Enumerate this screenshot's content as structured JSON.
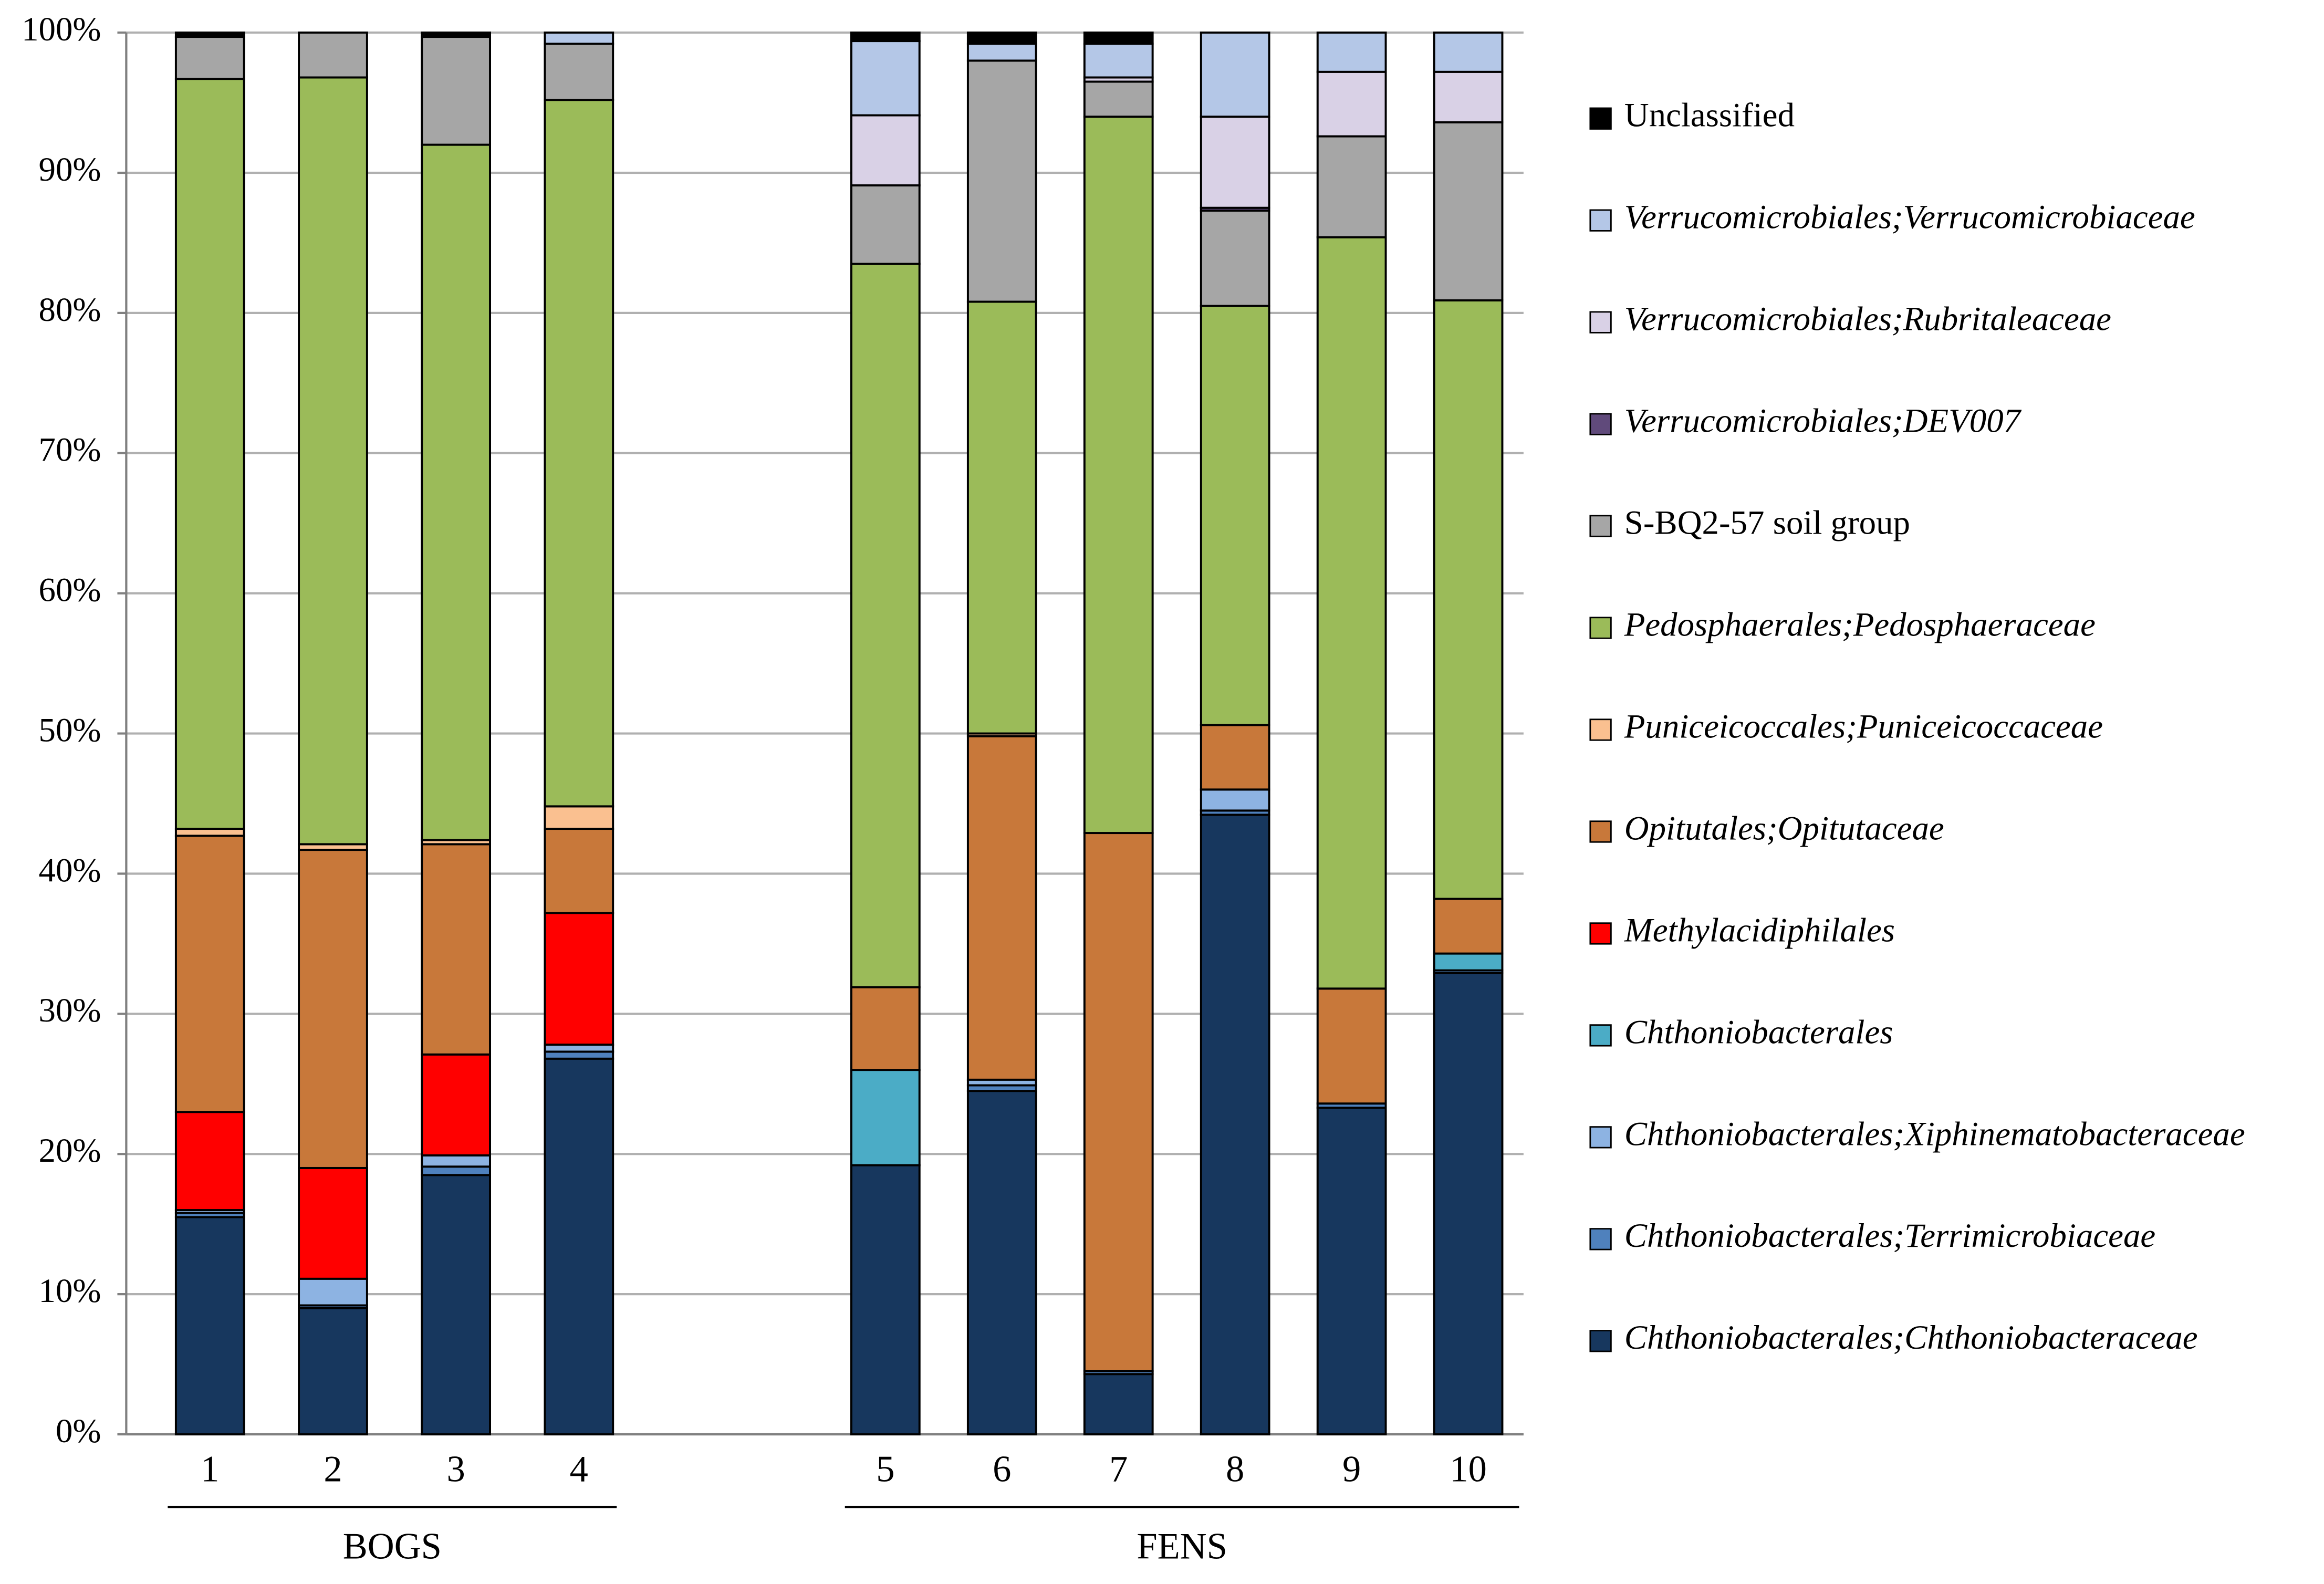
{
  "chart_data": {
    "type": "stacked_bar",
    "groups": [
      {
        "name": "BOGS",
        "categories": [
          "1",
          "2",
          "3",
          "4"
        ]
      },
      {
        "name": "FENS",
        "categories": [
          "5",
          "6",
          "7",
          "8",
          "9",
          "10"
        ]
      }
    ],
    "ylim": [
      0,
      100
    ],
    "yticks": [
      {
        "value": 0,
        "label": "0%"
      },
      {
        "value": 10,
        "label": "10%"
      },
      {
        "value": 20,
        "label": "20%"
      },
      {
        "value": 30,
        "label": "30%"
      },
      {
        "value": 40,
        "label": "40%"
      },
      {
        "value": 50,
        "label": "50%"
      },
      {
        "value": 60,
        "label": "60%"
      },
      {
        "value": 70,
        "label": "70%"
      },
      {
        "value": 80,
        "label": "80%"
      },
      {
        "value": 90,
        "label": "90%"
      },
      {
        "value": 100,
        "label": "100%"
      }
    ],
    "grid": true,
    "legend": "right",
    "series": [
      {
        "name": "Chthoniobacterales;Chthoniobacteraceae",
        "italic": true,
        "color": "#17375e",
        "values": [
          15.5,
          9.0,
          18.5,
          26.8,
          19.2,
          24.5,
          4.3,
          44.2,
          23.3,
          32.9
        ]
      },
      {
        "name": "Chthoniobacterales;Terrimicrobiaceae",
        "italic": true,
        "color": "#4f81bd",
        "values": [
          0.3,
          0.2,
          0.6,
          0.5,
          0,
          0.4,
          0.2,
          0.3,
          0.3,
          0.2
        ]
      },
      {
        "name": "Chthoniobacterales;Xiphinematobacteraceae",
        "italic": true,
        "color": "#8db3e2",
        "values": [
          0.2,
          1.9,
          0.8,
          0.5,
          0,
          0.4,
          0,
          1.5,
          0,
          0
        ]
      },
      {
        "name": "Chthoniobacterales",
        "italic": true,
        "color": "#4bacc6",
        "values": [
          0,
          0,
          0,
          0,
          6.8,
          0,
          0,
          0,
          0,
          1.2
        ]
      },
      {
        "name": "Methylacidiphilales",
        "italic": true,
        "color": "#ff0000",
        "values": [
          7.0,
          7.9,
          7.2,
          9.4,
          0,
          0,
          0,
          0,
          0,
          0
        ]
      },
      {
        "name": "Opitutales;Opitutaceae",
        "italic": true,
        "color": "#c8783a",
        "values": [
          19.7,
          22.7,
          15.0,
          6.0,
          5.9,
          24.5,
          38.4,
          4.6,
          8.2,
          3.9
        ]
      },
      {
        "name": "Puniceicoccales;Puniceicoccaceae",
        "italic": true,
        "color": "#fac090",
        "values": [
          0.5,
          0.4,
          0.3,
          1.6,
          0,
          0.2,
          0,
          0,
          0,
          0
        ]
      },
      {
        "name": "Pedosphaerales;Pedosphaeraceae",
        "italic": true,
        "color": "#9bbb59",
        "values": [
          53.5,
          54.7,
          49.6,
          50.4,
          51.6,
          30.8,
          51.1,
          29.9,
          53.6,
          42.7
        ]
      },
      {
        "name": "S-BQ2-57 soil group",
        "italic": false,
        "color": "#a6a6a6",
        "values": [
          3.0,
          3.2,
          7.7,
          4.0,
          5.6,
          17.2,
          2.5,
          6.8,
          7.2,
          12.7
        ]
      },
      {
        "name": "Verrucomicrobiales;DEV007",
        "italic": true,
        "color": "#604a7b",
        "values": [
          0,
          0,
          0,
          0,
          0,
          0,
          0,
          0.2,
          0,
          0
        ]
      },
      {
        "name": "Verrucomicrobiales;Rubritaleaceae",
        "italic": true,
        "color": "#d9d1e6",
        "values": [
          0,
          0,
          0,
          0,
          5.0,
          0,
          0.3,
          6.5,
          4.6,
          3.6
        ]
      },
      {
        "name": "Verrucomicrobiales;Verrucomicrobiaceae",
        "italic": true,
        "color": "#b4c7e7",
        "values": [
          0,
          0,
          0,
          0.8,
          5.3,
          1.2,
          2.4,
          6.0,
          2.8,
          2.8
        ]
      },
      {
        "name": "Unclassified",
        "italic": false,
        "color": "#000000",
        "values": [
          0.3,
          0,
          0.3,
          0,
          0.6,
          0.8,
          0.8,
          0,
          0,
          0
        ]
      }
    ]
  }
}
